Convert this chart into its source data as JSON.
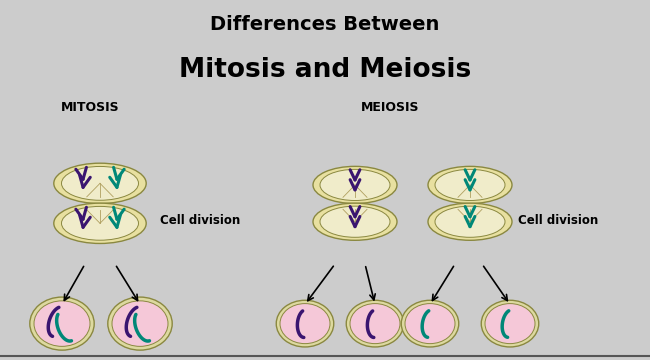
{
  "title_line1": "Differences Between",
  "title_line2": "Mitosis and Meiosis",
  "title_bg": "#ffff00",
  "title_color": "#000000",
  "diagram_bg": "#cccccc",
  "label_mitosis": "MITOSIS",
  "label_meiosis": "MEIOSIS",
  "cell_division_text": "Cell division",
  "cell_outer_color": "#e8e0a0",
  "cell_inner_color": "#f0ecca",
  "daughter_outer_color": "#ddd9a0",
  "daughter_inner_color": "#f5c8d8",
  "chromosome_purple": "#3a1570",
  "chromosome_teal": "#008878",
  "title_fontsize1": 14,
  "title_fontsize2": 19,
  "label_fontsize": 9,
  "cell_div_fontsize": 8.5
}
